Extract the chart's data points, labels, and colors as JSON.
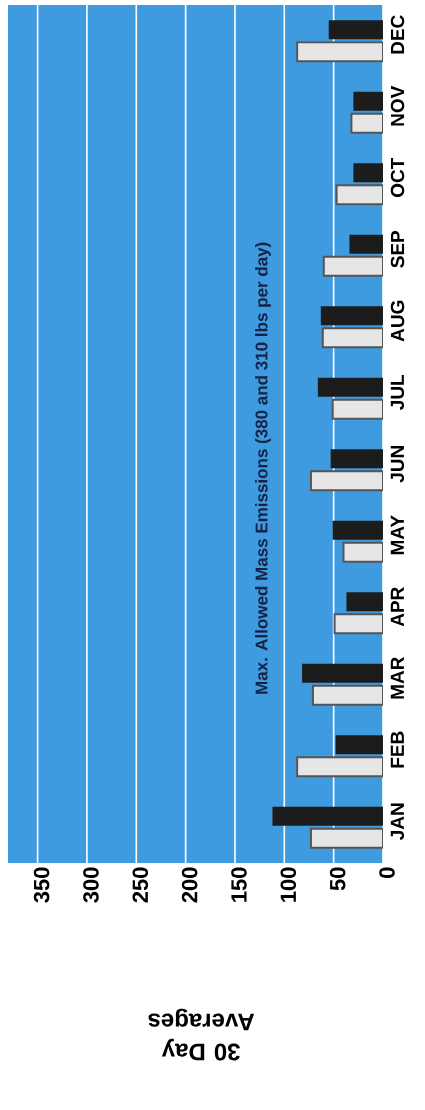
{
  "chart_data": {
    "type": "bar",
    "orientation": "horizontal",
    "xlabel": "30 Day Averages",
    "annotations": [
      "Max. Allowed Mass Emissions (380 and 310 lbs per day)"
    ],
    "categories": [
      "DEC",
      "NOV",
      "OCT",
      "SEP",
      "AUG",
      "JUL",
      "JUN",
      "MAY",
      "APR",
      "MAR",
      "FEB",
      "JAN"
    ],
    "series": [
      {
        "color": "#e6e6e6",
        "values": [
          87,
          32,
          47,
          60,
          61,
          51,
          73,
          40,
          49,
          71,
          87,
          73
        ]
      },
      {
        "color": "#1c1c1c",
        "values": [
          55,
          30,
          30,
          34,
          63,
          66,
          53,
          51,
          37,
          82,
          48,
          112
        ]
      }
    ],
    "xlim": [
      380,
      0
    ],
    "xticks": [
      0,
      50,
      100,
      150,
      200,
      250,
      300,
      350
    ],
    "grid": "x"
  }
}
